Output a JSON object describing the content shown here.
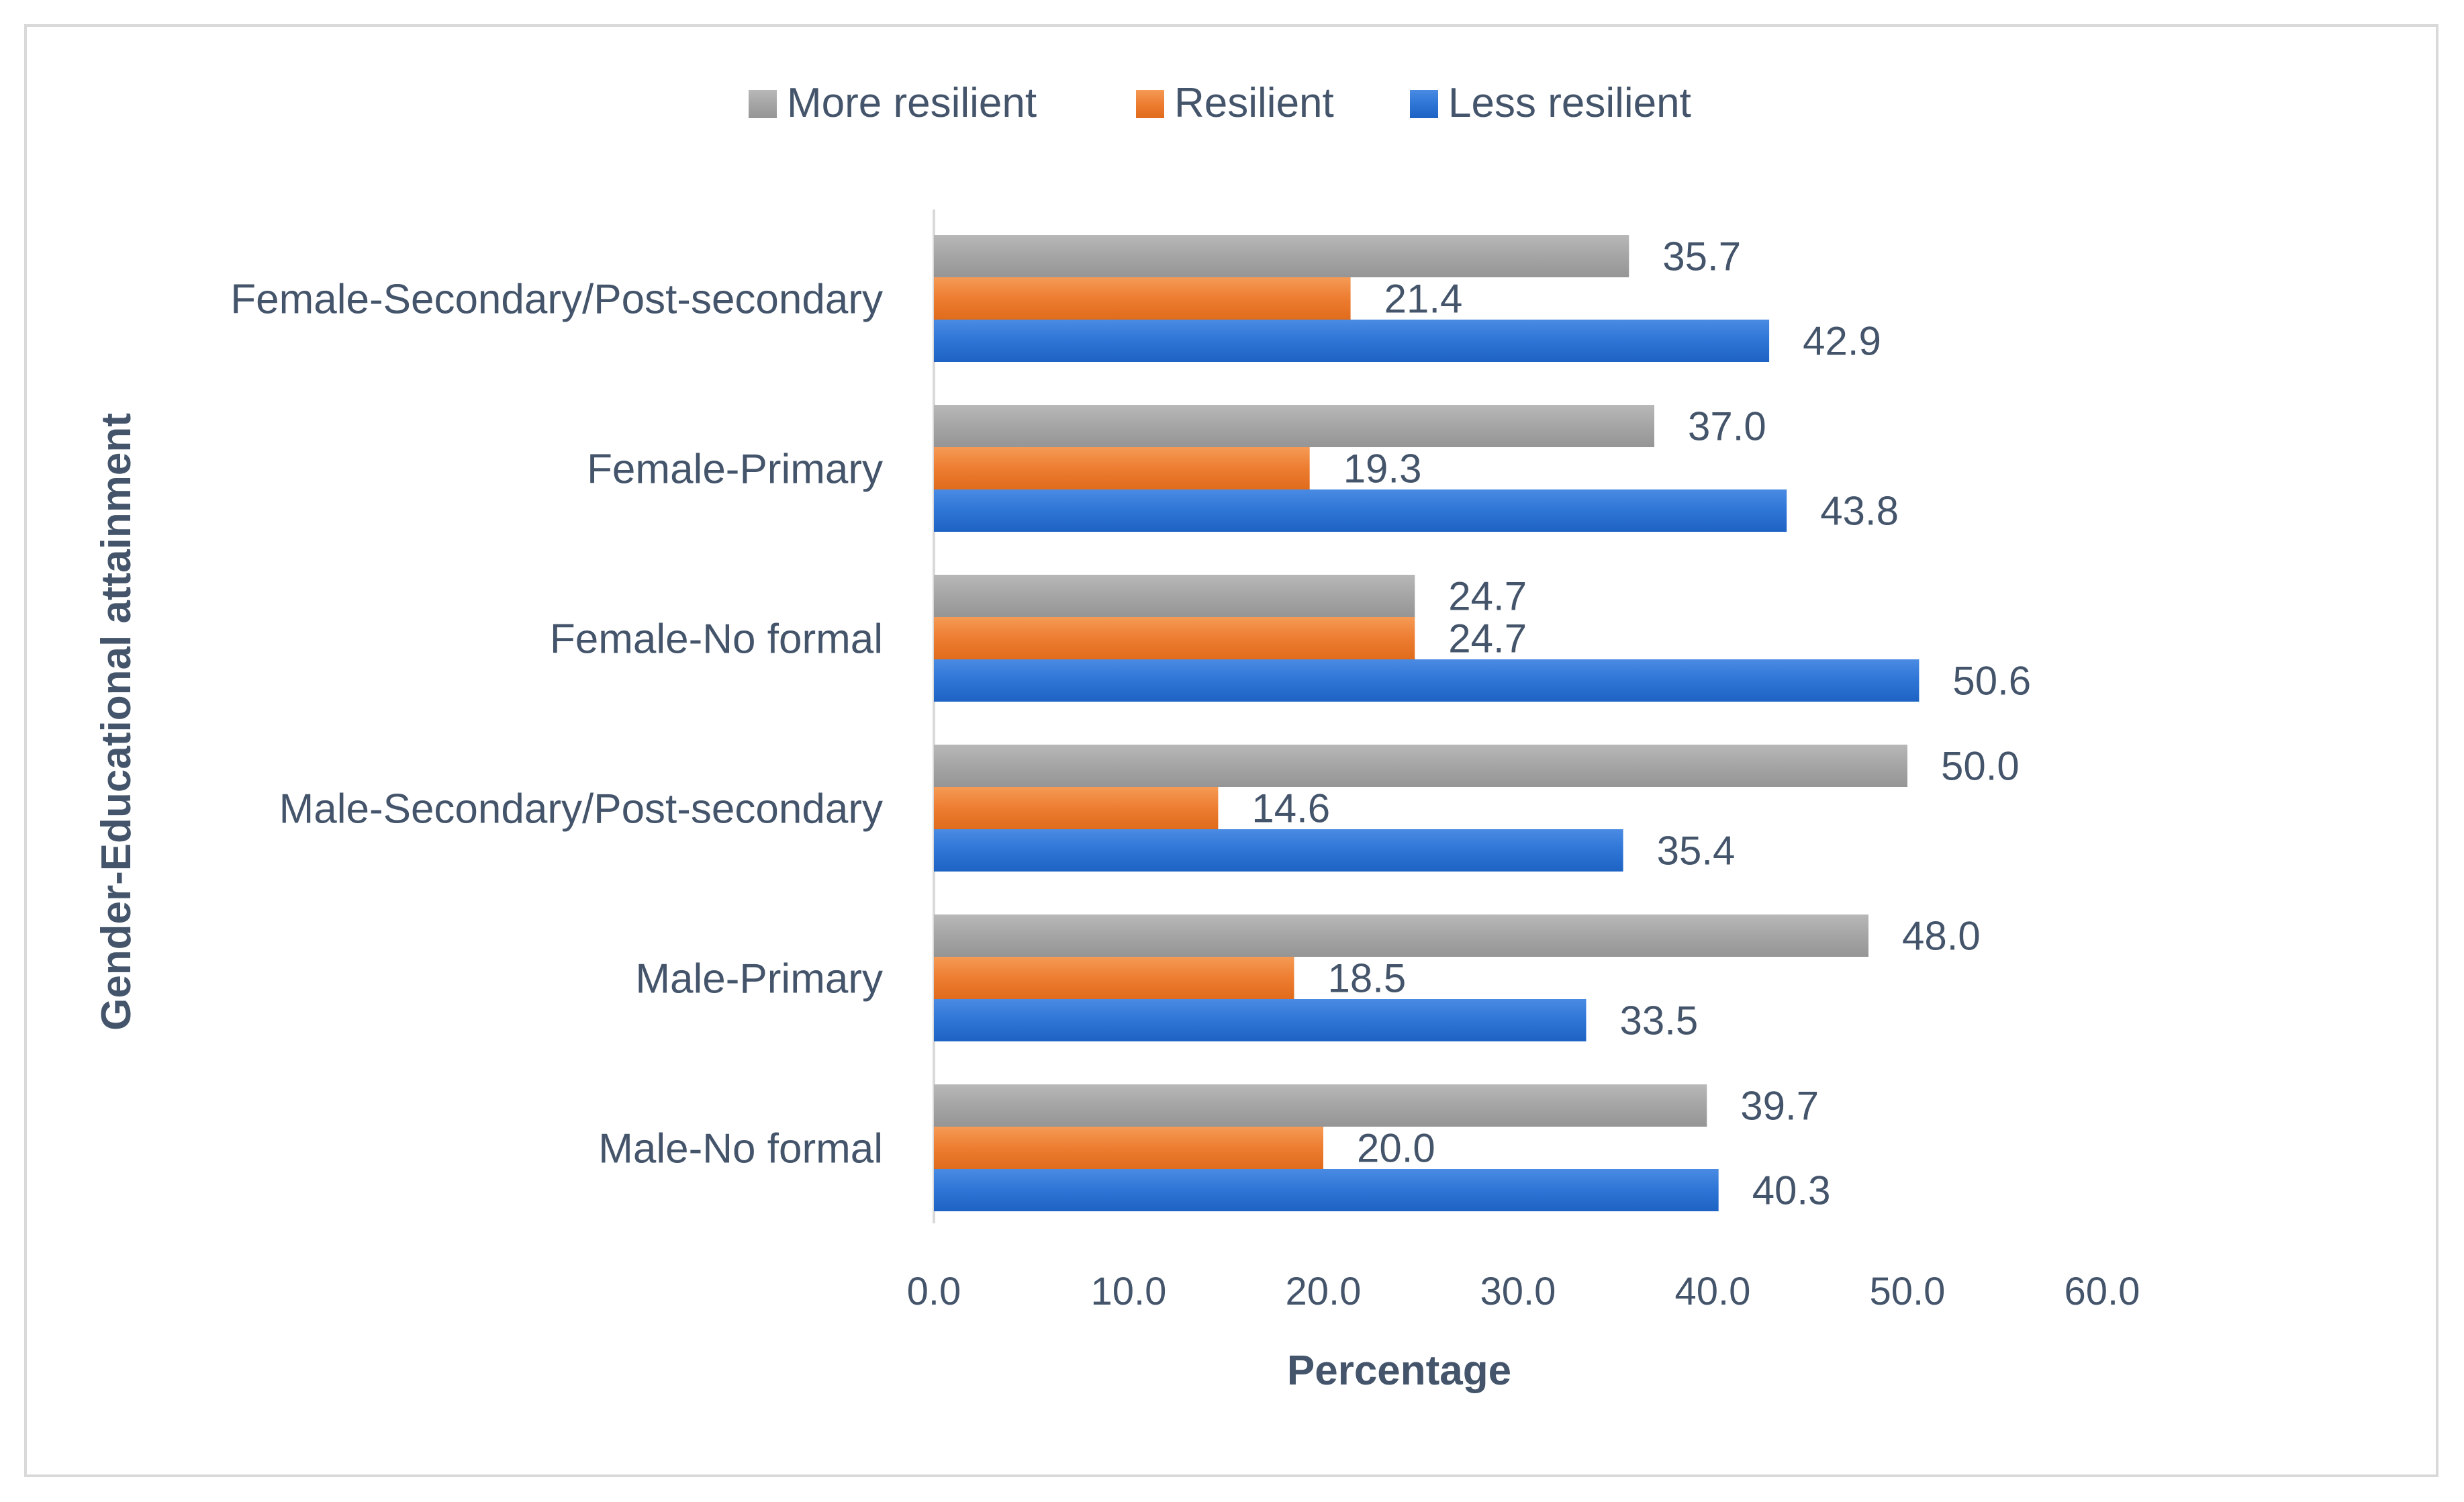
{
  "chart_data": {
    "type": "bar",
    "orientation": "horizontal",
    "title": "",
    "xlabel": "Percentage",
    "ylabel": "Gender-Educational attainment",
    "xlim": [
      0,
      60
    ],
    "xticks": [
      "0.0",
      "10.0",
      "20.0",
      "30.0",
      "40.0",
      "50.0",
      "60.0"
    ],
    "grid": false,
    "legend_position": "top",
    "categories": [
      "Female-Secondary/Post-secondary",
      "Female-Primary",
      "Female-No formal",
      "Male-Secondary/Post-secondary",
      "Male-Primary",
      "Male-No formal"
    ],
    "series": [
      {
        "name": "More resilient",
        "color": "#a5a5a5",
        "values": [
          35.7,
          37.0,
          24.7,
          50.0,
          48.0,
          39.7
        ],
        "labels": [
          "35.7",
          "37.0",
          "24.7",
          "50.0",
          "48.0",
          "39.7"
        ]
      },
      {
        "name": "Resilient",
        "color": "#ed7d31",
        "values": [
          21.4,
          19.3,
          24.7,
          14.6,
          18.5,
          20.0
        ],
        "labels": [
          "21.4",
          "19.3",
          "24.7",
          "14.6",
          "18.5",
          "20.0"
        ]
      },
      {
        "name": "Less resilient",
        "color": "#2e75d6",
        "values": [
          42.9,
          43.8,
          50.6,
          35.4,
          33.5,
          40.3
        ],
        "labels": [
          "42.9",
          "43.8",
          "50.6",
          "35.4",
          "33.5",
          "40.3"
        ]
      }
    ]
  }
}
